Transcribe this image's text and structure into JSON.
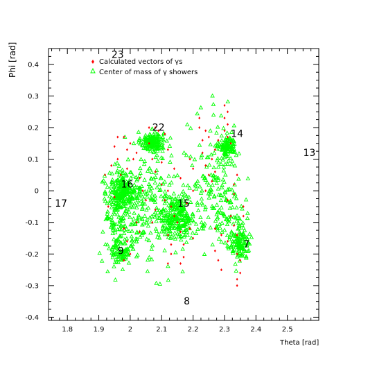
{
  "chart_data": {
    "type": "scatter",
    "xlabel": "Theta [rad]",
    "ylabel": "Phi [rad]",
    "xlim": [
      1.74,
      2.6
    ],
    "ylim": [
      -0.41,
      0.45
    ],
    "x_ticks": [
      1.8,
      1.9,
      2.0,
      2.1,
      2.2,
      2.3,
      2.4,
      2.5
    ],
    "x_tick_labels": [
      "1.8",
      "1.9",
      "2",
      "2.1",
      "2.2",
      "2.3",
      "2.4",
      "2.5"
    ],
    "y_ticks": [
      0.4,
      0.3,
      0.2,
      0.1,
      0.0,
      -0.1,
      -0.2,
      -0.3,
      -0.4
    ],
    "y_tick_labels": [
      "0.4",
      "0.3",
      "0.2",
      "0.1",
      "0",
      "-0.1",
      "-0.2",
      "-0.3",
      "-0.4"
    ],
    "grid": false,
    "legend_position": "top-left",
    "legend": [
      {
        "label": "Calculated vectors of γs",
        "marker": "diamond",
        "color": "#ff0000"
      },
      {
        "label": "Center of mass of γ showers",
        "marker": "triangle",
        "color": "#00ff00"
      }
    ],
    "annotations": [
      {
        "text": "23",
        "x": 1.96,
        "y": 0.42
      },
      {
        "text": "22",
        "x": 2.09,
        "y": 0.19
      },
      {
        "text": "14",
        "x": 2.34,
        "y": 0.17
      },
      {
        "text": "13",
        "x": 2.57,
        "y": 0.11
      },
      {
        "text": "16",
        "x": 1.99,
        "y": 0.01
      },
      {
        "text": "17",
        "x": 1.78,
        "y": -0.05
      },
      {
        "text": "15",
        "x": 2.17,
        "y": -0.05
      },
      {
        "text": "9",
        "x": 1.97,
        "y": -0.2
      },
      {
        "text": "7",
        "x": 2.37,
        "y": -0.18
      },
      {
        "text": "8",
        "x": 2.18,
        "y": -0.36
      }
    ],
    "series": [
      {
        "name": "Calculated vectors of γs",
        "color": "#ff0000",
        "marker": "diamond",
        "points": [
          [
            2.3,
            0.27
          ],
          [
            2.31,
            0.25
          ],
          [
            2.3,
            0.23
          ],
          [
            2.31,
            0.21
          ],
          [
            2.3,
            0.19
          ],
          [
            2.31,
            0.17
          ],
          [
            2.32,
            0.15
          ],
          [
            2.28,
            0.16
          ],
          [
            2.27,
            0.13
          ],
          [
            2.26,
            0.1
          ],
          [
            2.27,
            0.06
          ],
          [
            2.26,
            0.03
          ],
          [
            2.24,
            0.0
          ],
          [
            2.22,
            0.23
          ],
          [
            2.22,
            0.2
          ],
          [
            2.23,
            0.16
          ],
          [
            2.23,
            0.12
          ],
          [
            2.24,
            0.08
          ],
          [
            2.25,
            0.05
          ],
          [
            2.24,
            0.19
          ],
          [
            2.25,
            0.17
          ],
          [
            2.08,
            0.2
          ],
          [
            2.09,
            0.19
          ],
          [
            2.11,
            0.18
          ],
          [
            2.06,
            0.2
          ],
          [
            1.98,
            0.17
          ],
          [
            1.96,
            0.17
          ],
          [
            1.95,
            0.14
          ],
          [
            1.96,
            0.1
          ],
          [
            1.99,
            0.13
          ],
          [
            2.0,
            0.15
          ],
          [
            1.97,
            0.05
          ],
          [
            1.99,
            0.07
          ],
          [
            2.01,
            0.1
          ],
          [
            2.02,
            0.12
          ],
          [
            1.95,
            -0.02
          ],
          [
            1.93,
            -0.05
          ],
          [
            1.98,
            -0.12
          ],
          [
            1.99,
            -0.16
          ],
          [
            2.0,
            -0.2
          ],
          [
            1.98,
            -0.22
          ],
          [
            2.02,
            -0.1
          ],
          [
            2.03,
            -0.13
          ],
          [
            2.1,
            0.02
          ],
          [
            2.12,
            0.0
          ],
          [
            2.11,
            -0.03
          ],
          [
            2.13,
            -0.05
          ],
          [
            2.14,
            -0.08
          ],
          [
            2.15,
            -0.1
          ],
          [
            2.12,
            -0.14
          ],
          [
            2.13,
            -0.17
          ],
          [
            2.13,
            -0.2
          ],
          [
            2.12,
            -0.23
          ],
          [
            2.16,
            -0.13
          ],
          [
            2.17,
            -0.17
          ],
          [
            2.17,
            -0.21
          ],
          [
            2.16,
            -0.23
          ],
          [
            2.19,
            -0.12
          ],
          [
            2.2,
            -0.15
          ],
          [
            2.08,
            -0.06
          ],
          [
            2.07,
            -0.1
          ],
          [
            2.08,
            0.06
          ],
          [
            2.1,
            0.09
          ],
          [
            2.12,
            0.13
          ],
          [
            2.07,
            0.1
          ],
          [
            2.14,
            0.07
          ],
          [
            2.16,
            0.04
          ],
          [
            2.27,
            -0.19
          ],
          [
            2.28,
            -0.22
          ],
          [
            2.29,
            -0.25
          ],
          [
            2.27,
            -0.12
          ],
          [
            2.29,
            -0.14
          ],
          [
            2.31,
            -0.16
          ],
          [
            2.32,
            -0.08
          ],
          [
            2.33,
            -0.11
          ],
          [
            2.34,
            -0.14
          ],
          [
            2.35,
            -0.26
          ],
          [
            2.34,
            -0.28
          ],
          [
            2.34,
            -0.3
          ],
          [
            2.34,
            -0.2
          ],
          [
            2.35,
            -0.22
          ],
          [
            2.36,
            -0.05
          ],
          [
            2.36,
            -0.08
          ],
          [
            2.34,
            0.05
          ],
          [
            2.33,
            0.02
          ],
          [
            2.33,
            -0.01
          ],
          [
            2.31,
            -0.03
          ],
          [
            2.03,
            0.04
          ],
          [
            2.04,
            0.0
          ],
          [
            2.05,
            -0.03
          ],
          [
            1.94,
            0.08
          ],
          [
            1.92,
            0.05
          ],
          [
            2.19,
            0.1
          ],
          [
            2.2,
            0.07
          ],
          [
            2.2,
            0.0
          ],
          [
            2.18,
            -0.04
          ],
          [
            2.06,
            0.15
          ]
        ]
      },
      {
        "name": "Center of mass of γ showers",
        "color": "#00ff00",
        "marker": "triangle",
        "clusters": [
          {
            "cx": 2.07,
            "cy": 0.155,
            "sx": 0.018,
            "sy": 0.016,
            "n": 160
          },
          {
            "cx": 2.31,
            "cy": 0.14,
            "sx": 0.013,
            "sy": 0.016,
            "n": 100
          },
          {
            "cx": 1.975,
            "cy": 0.0,
            "sx": 0.022,
            "sy": 0.03,
            "n": 200
          },
          {
            "cx": 2.15,
            "cy": -0.08,
            "sx": 0.028,
            "sy": 0.035,
            "n": 230
          },
          {
            "cx": 1.97,
            "cy": -0.19,
            "sx": 0.014,
            "sy": 0.02,
            "n": 80
          },
          {
            "cx": 2.35,
            "cy": -0.17,
            "sx": 0.016,
            "sy": 0.022,
            "n": 110
          },
          {
            "cx": 2.06,
            "cy": -0.05,
            "sx": 0.06,
            "sy": 0.09,
            "n": 240
          },
          {
            "cx": 2.27,
            "cy": 0.04,
            "sx": 0.04,
            "sy": 0.1,
            "n": 150
          },
          {
            "cx": 1.97,
            "cy": -0.1,
            "sx": 0.035,
            "sy": 0.06,
            "n": 100
          },
          {
            "cx": 2.32,
            "cy": -0.1,
            "sx": 0.03,
            "sy": 0.05,
            "n": 60
          }
        ]
      }
    ]
  }
}
